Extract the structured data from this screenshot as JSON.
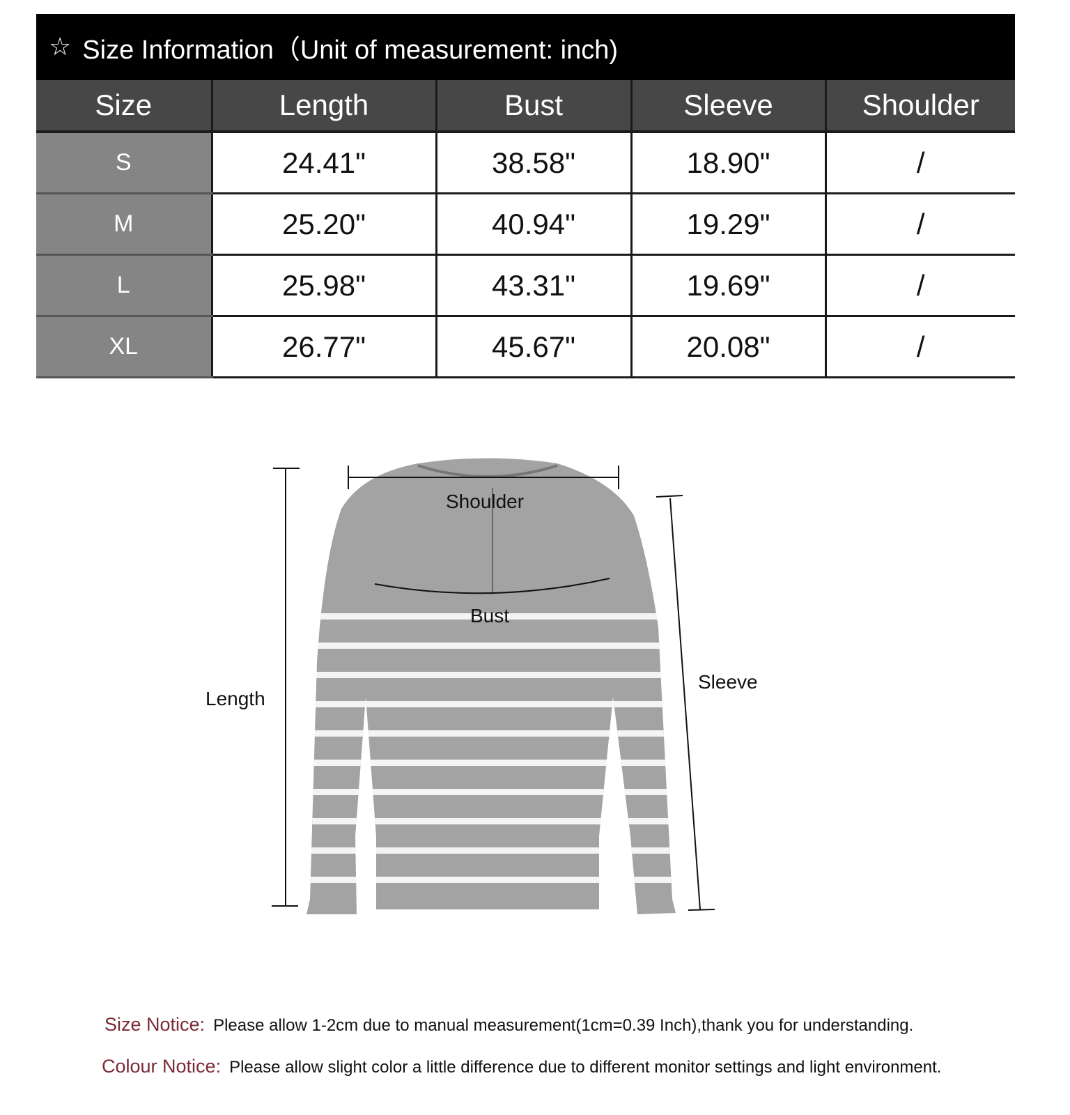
{
  "title": "Size Information（Unit of measurement: inch)",
  "title_icon": "star-outline-icon",
  "table": {
    "headers": [
      "Size",
      "Length",
      "Bust",
      "Sleeve",
      "Shoulder"
    ],
    "rows": [
      [
        "S",
        "24.41\"",
        "38.58\"",
        "18.90\"",
        "/"
      ],
      [
        "M",
        "25.20\"",
        "40.94\"",
        "19.29\"",
        "/"
      ],
      [
        "L",
        "25.98\"",
        "43.31\"",
        "19.69\"",
        "/"
      ],
      [
        "XL",
        "26.77\"",
        "45.67\"",
        "20.08\"",
        "/"
      ]
    ]
  },
  "diagram": {
    "shoulder": "Shoulder",
    "bust": "Bust",
    "length": "Length",
    "sleeve": "Sleeve"
  },
  "notices": [
    {
      "label": "Size Notice:",
      "text": "Please allow 1-2cm due to manual measurement(1cm=0.39 Inch),thank you for understanding."
    },
    {
      "label": "Colour Notice:",
      "text": "Please allow slight color  a little difference due to different monitor settings and light environment."
    }
  ],
  "colors": {
    "header_bg": "#000000",
    "column_header_bg": "#474747",
    "size_cell_bg": "#858585",
    "notice_label": "#7a2a36",
    "sweater": "#a3a3a3"
  }
}
